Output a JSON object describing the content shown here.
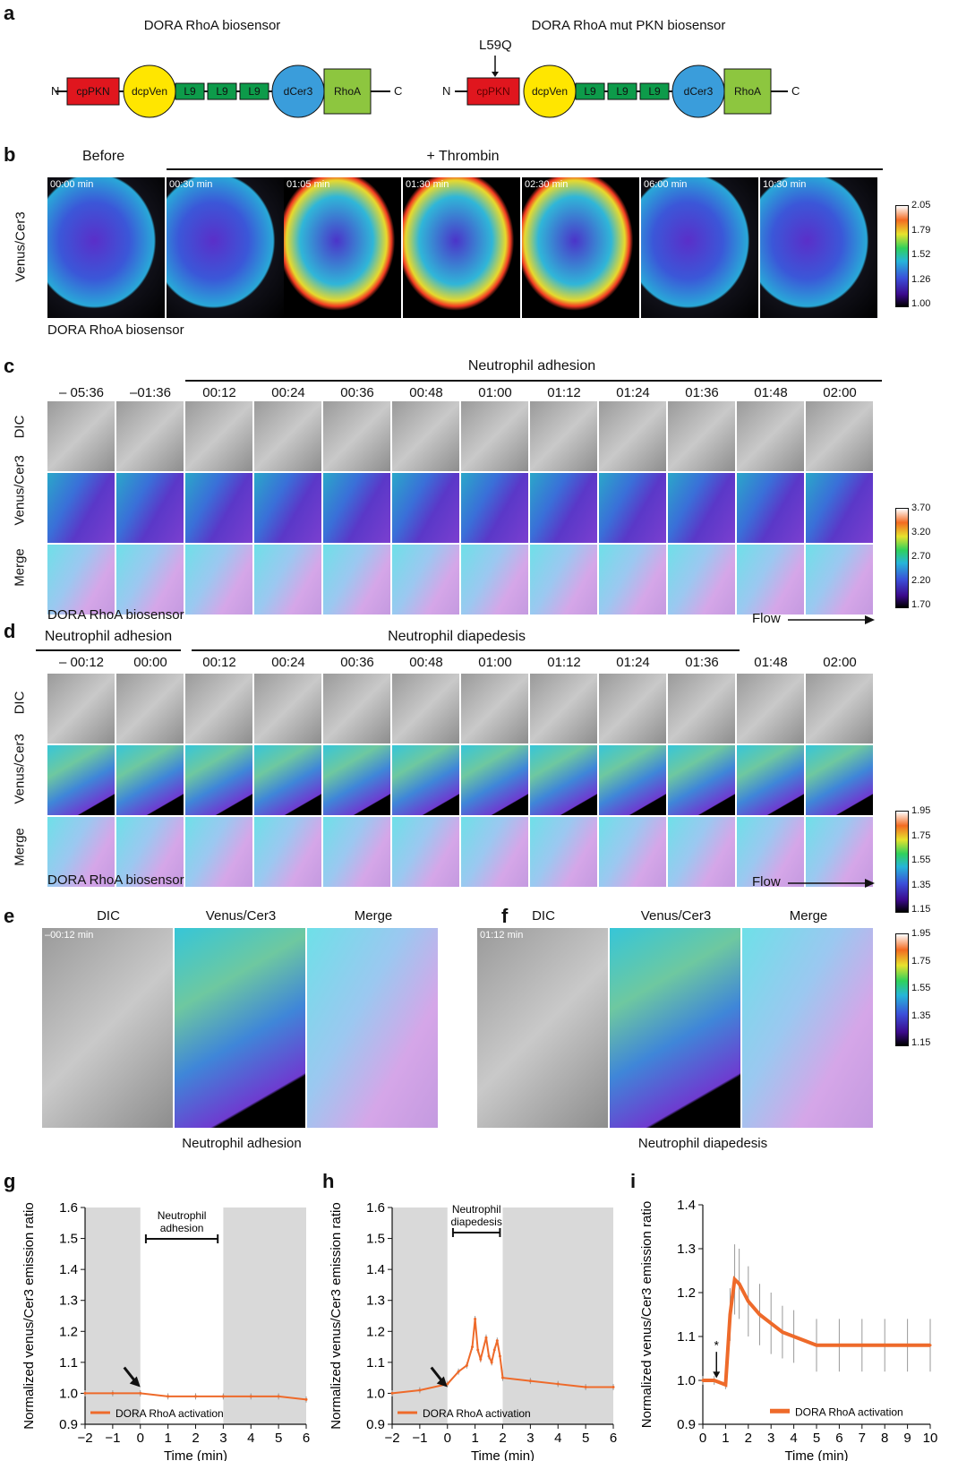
{
  "panels": {
    "a": "a",
    "b": "b",
    "c": "c",
    "d": "d",
    "e": "e",
    "f": "f",
    "g": "g",
    "h": "h",
    "i": "i"
  },
  "a": {
    "left_title": "DORA RhoA biosensor",
    "right_title": "DORA RhoA mut PKN biosensor",
    "mutation": "L59Q",
    "n": "N",
    "c": "C",
    "blocks": {
      "cppkn": "cpPKN",
      "dcpven": "dcpVen",
      "l9": "L9",
      "dcer3": "dCer3",
      "rhoa": "RhoA"
    },
    "colors": {
      "cppkn": "#e0161e",
      "dcpven": "#ffe600",
      "l9": "#0d9b4a",
      "dcer3": "#3a9ddb",
      "rhoa": "#8dc63f"
    }
  },
  "b": {
    "before": "Before",
    "treatment": "+ Thrombin",
    "row_label": "Venus/Cer3",
    "caption": "DORA RhoA biosensor",
    "times": [
      "00:00 min",
      "00:30 min",
      "01:05 min",
      "01:30 min",
      "02:30 min",
      "06:00 min",
      "10:30 min"
    ],
    "colorbar": [
      "2.05",
      "1.79",
      "1.52",
      "1.26",
      "1.00"
    ]
  },
  "c": {
    "header": "Neutrophil adhesion",
    "times": [
      "– 05:36",
      "–01:36",
      "00:12",
      "00:24",
      "00:36",
      "00:48",
      "01:00",
      "01:12",
      "01:24",
      "01:36",
      "01:48",
      "02:00"
    ],
    "rows": [
      "DIC",
      "Venus/Cer3",
      "Merge"
    ],
    "caption": "DORA RhoA biosensor",
    "flow": "Flow",
    "colorbar": [
      "3.70",
      "3.20",
      "2.70",
      "2.20",
      "1.70"
    ]
  },
  "d": {
    "header_left": "Neutrophil adhesion",
    "header_right": "Neutrophil diapedesis",
    "times": [
      "– 00:12",
      "00:00",
      "00:12",
      "00:24",
      "00:36",
      "00:48",
      "01:00",
      "01:12",
      "01:24",
      "01:36",
      "01:48",
      "02:00"
    ],
    "rows": [
      "DIC",
      "Venus/Cer3",
      "Merge"
    ],
    "caption": "DORA RhoA biosensor",
    "flow": "Flow",
    "colorbar": [
      "1.95",
      "1.75",
      "1.55",
      "1.35",
      "1.15"
    ]
  },
  "e": {
    "titles": [
      "DIC",
      "Venus/Cer3",
      "Merge"
    ],
    "stamp": "–00:12 min",
    "caption": "Neutrophil adhesion"
  },
  "f": {
    "titles": [
      "DIC",
      "Venus/Cer3",
      "Merge"
    ],
    "stamp": "01:12 min",
    "caption": "Neutrophil diapedesis",
    "colorbar": [
      "1.95",
      "1.75",
      "1.55",
      "1.35",
      "1.15"
    ]
  },
  "chart_data": [
    {
      "panel": "g",
      "type": "line",
      "ylabel": "Normalized venus/Cer3 emission ratio",
      "xlabel": "Time (min)",
      "xlim": [
        -2,
        6
      ],
      "ylim": [
        0.9,
        1.6
      ],
      "xticks": [
        "−2",
        "−1",
        "0",
        "1",
        "2",
        "3",
        "4",
        "5",
        "6"
      ],
      "yticks": [
        "0.9",
        "1.0",
        "1.1",
        "1.2",
        "1.3",
        "1.4",
        "1.5",
        "1.6"
      ],
      "annotation": "Neutrophil adhesion",
      "annotation_range": [
        0.2,
        2.8
      ],
      "shaded": [
        [
          -2,
          0
        ],
        [
          3,
          6
        ]
      ],
      "legend": "DORA RhoA activation",
      "series": [
        {
          "name": "DORA RhoA activation",
          "x": [
            -2,
            -1,
            0,
            1,
            2,
            3,
            4,
            5,
            6
          ],
          "values": [
            1.0,
            1.0,
            1.0,
            0.99,
            0.99,
            0.99,
            0.99,
            0.99,
            0.98
          ]
        }
      ]
    },
    {
      "panel": "h",
      "type": "line",
      "ylabel": "Normalized venus/Cer3 emission ratio",
      "xlabel": "Time (min)",
      "xlim": [
        -2,
        6
      ],
      "ylim": [
        0.9,
        1.6
      ],
      "xticks": [
        "−2",
        "−1",
        "0",
        "1",
        "2",
        "3",
        "4",
        "5",
        "6"
      ],
      "yticks": [
        "0.9",
        "1.0",
        "1.1",
        "1.2",
        "1.3",
        "1.4",
        "1.5",
        "1.6"
      ],
      "annotation": "Neutrophil diapedesis",
      "annotation_range": [
        0.2,
        1.9
      ],
      "shaded": [
        [
          -2,
          0
        ],
        [
          2,
          6
        ]
      ],
      "legend": "DORA RhoA activation",
      "series": [
        {
          "name": "DORA RhoA activation",
          "x": [
            -2,
            -1,
            0,
            0.4,
            0.7,
            0.9,
            1.0,
            1.1,
            1.2,
            1.4,
            1.5,
            1.6,
            1.7,
            1.8,
            1.9,
            2.0,
            3,
            4,
            5,
            6
          ],
          "values": [
            1.0,
            1.01,
            1.03,
            1.07,
            1.09,
            1.15,
            1.24,
            1.14,
            1.11,
            1.18,
            1.12,
            1.1,
            1.14,
            1.17,
            1.12,
            1.05,
            1.04,
            1.03,
            1.02,
            1.02
          ]
        }
      ]
    },
    {
      "panel": "i",
      "type": "line",
      "ylabel": "Normalized venus/Cer3 emission ratio",
      "xlabel": "Time (min)",
      "xlim": [
        0,
        10
      ],
      "ylim": [
        0.9,
        1.4
      ],
      "xticks": [
        "0",
        "1",
        "2",
        "3",
        "4",
        "5",
        "6",
        "7",
        "8",
        "9",
        "10"
      ],
      "yticks": [
        "0.9",
        "1.0",
        "1.1",
        "1.2",
        "1.3",
        "1.4"
      ],
      "marker": "*",
      "legend": "DORA RhoA activation",
      "series": [
        {
          "name": "DORA RhoA activation",
          "x": [
            0,
            0.5,
            1.0,
            1.2,
            1.4,
            1.6,
            2.0,
            2.5,
            3,
            3.5,
            4,
            5,
            6,
            7,
            8,
            9,
            10
          ],
          "values": [
            1.0,
            1.0,
            0.99,
            1.15,
            1.23,
            1.22,
            1.18,
            1.15,
            1.13,
            1.11,
            1.1,
            1.08,
            1.08,
            1.08,
            1.08,
            1.08,
            1.08
          ],
          "err": [
            0.01,
            0.01,
            0.01,
            0.06,
            0.08,
            0.08,
            0.08,
            0.07,
            0.07,
            0.06,
            0.06,
            0.06,
            0.06,
            0.06,
            0.06,
            0.06,
            0.06
          ]
        }
      ]
    }
  ]
}
